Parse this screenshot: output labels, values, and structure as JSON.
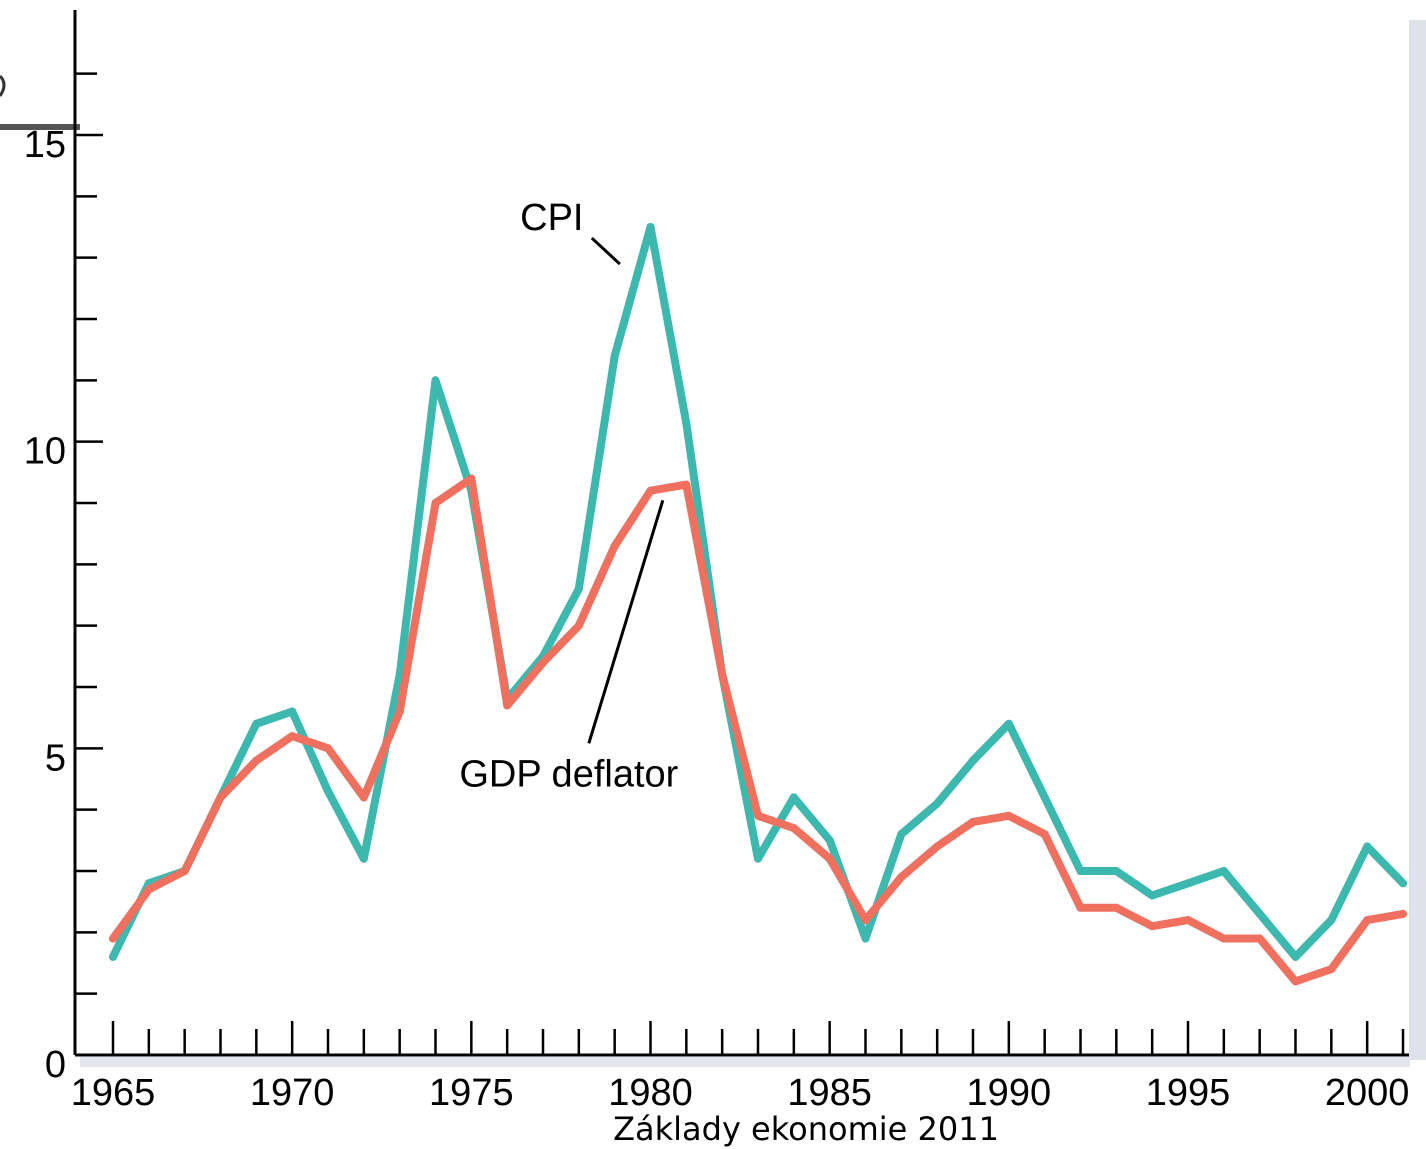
{
  "chart_data": {
    "type": "line",
    "x": [
      1965,
      1966,
      1967,
      1968,
      1969,
      1970,
      1971,
      1972,
      1973,
      1974,
      1975,
      1976,
      1977,
      1978,
      1979,
      1980,
      1981,
      1982,
      1983,
      1984,
      1985,
      1986,
      1987,
      1988,
      1989,
      1990,
      1991,
      1992,
      1993,
      1994,
      1995,
      1996,
      1997,
      1998,
      1999,
      2000,
      2001
    ],
    "series": [
      {
        "name": "CPI",
        "color": "#3db8ae",
        "values": [
          1.6,
          2.8,
          3.0,
          4.2,
          5.4,
          5.6,
          4.3,
          3.2,
          6.2,
          11.0,
          9.2,
          5.8,
          6.5,
          7.6,
          11.4,
          13.5,
          10.3,
          6.2,
          3.2,
          4.2,
          3.5,
          1.9,
          3.6,
          4.1,
          4.8,
          5.4,
          4.2,
          3.0,
          3.0,
          2.6,
          2.8,
          3.0,
          2.3,
          1.6,
          2.2,
          3.4,
          2.8
        ]
      },
      {
        "name": "GDP deflator",
        "color": "#f07060",
        "values": [
          1.9,
          2.7,
          3.0,
          4.2,
          4.8,
          5.2,
          5.0,
          4.2,
          5.6,
          9.0,
          9.4,
          5.7,
          6.4,
          7.0,
          8.3,
          9.2,
          9.3,
          6.2,
          3.9,
          3.7,
          3.2,
          2.2,
          2.9,
          3.4,
          3.8,
          3.9,
          3.6,
          2.4,
          2.4,
          2.1,
          2.2,
          1.9,
          1.9,
          1.2,
          1.4,
          2.2,
          2.3
        ]
      }
    ],
    "xlim": [
      1965,
      2001
    ],
    "ylim": [
      0,
      15
    ],
    "xticks": [
      1965,
      1970,
      1975,
      1980,
      1985,
      1990,
      1995,
      2000
    ],
    "yticks": [
      0,
      5,
      10,
      15
    ],
    "title": "",
    "xlabel": "",
    "ylabel": "",
    "grid": false,
    "legend": "none",
    "annotations": [
      {
        "text": "CPI",
        "series": "CPI",
        "x": 1979.2
      },
      {
        "text": "GDP deflator",
        "series": "GDP deflator",
        "x": 1980.4
      }
    ]
  },
  "footer": {
    "text": "Základy ekonomie 2011"
  }
}
